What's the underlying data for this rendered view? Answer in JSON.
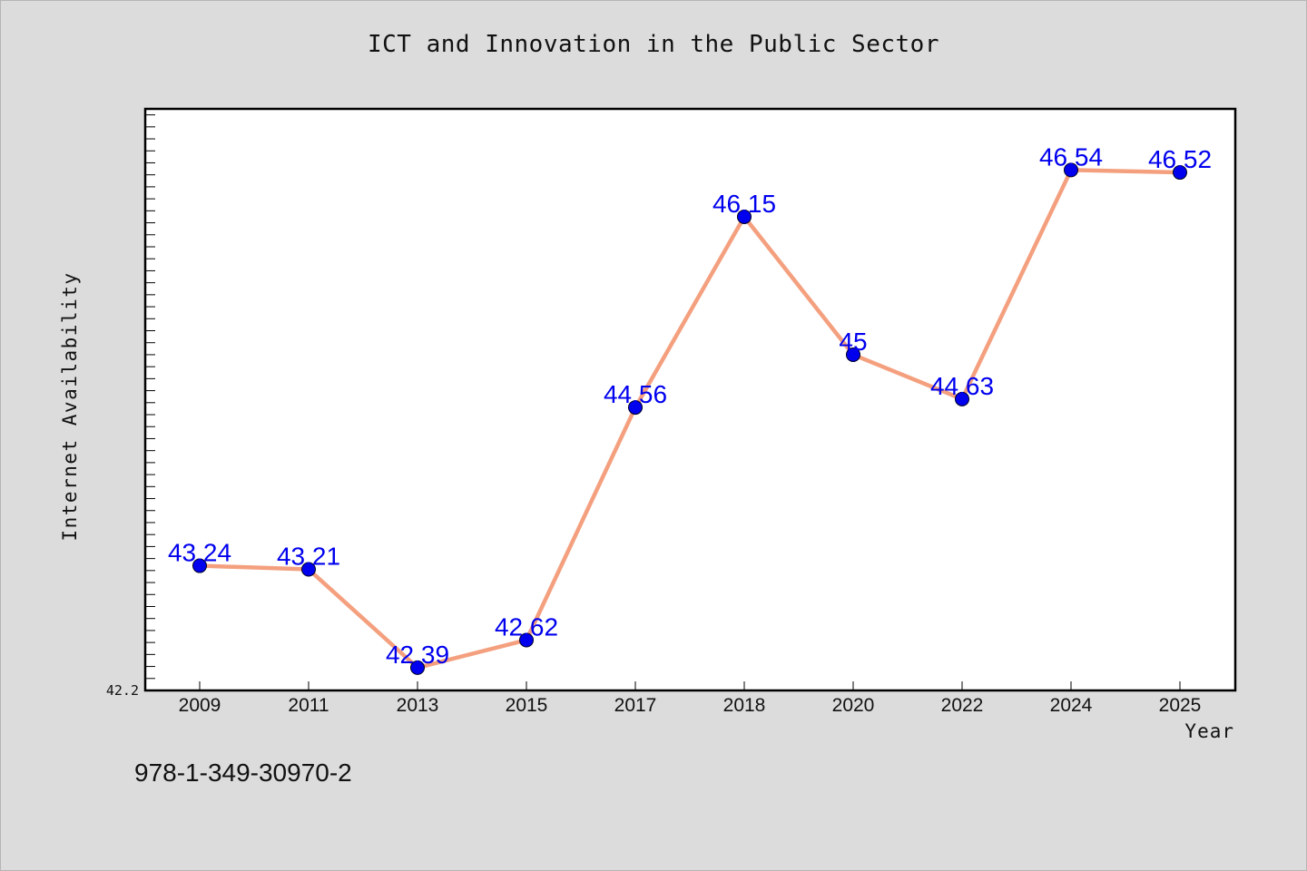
{
  "title": "ICT and Innovation in the Public Sector",
  "footer_text": "978-1-349-30970-2",
  "colors": {
    "background": "#dcdcdc",
    "plot_background": "#ffffff",
    "line": "#f4a07f",
    "marker": "#0000ee",
    "data_label": "#0000ee"
  },
  "chart_data": {
    "type": "line",
    "title": "ICT and Innovation in the Public Sector",
    "xlabel": "Year",
    "ylabel": "Internet Availability",
    "categories": [
      "2009",
      "2011",
      "2013",
      "2015",
      "2017",
      "2018",
      "2020",
      "2022",
      "2024",
      "2025"
    ],
    "series": [
      {
        "values": [
          43.24,
          43.21,
          42.39,
          42.62,
          44.56,
          46.15,
          45,
          44.63,
          46.54,
          46.52
        ]
      }
    ],
    "data_labels": [
      "43.24",
      "43.21",
      "42.39",
      "42.62",
      "44.56",
      "46.15",
      "45",
      "44.63",
      "46.54",
      "46.52"
    ],
    "ylim": [
      42.2,
      47.05
    ],
    "y_tick_labels": [
      "42.2"
    ],
    "grid": false,
    "legend": "none"
  }
}
